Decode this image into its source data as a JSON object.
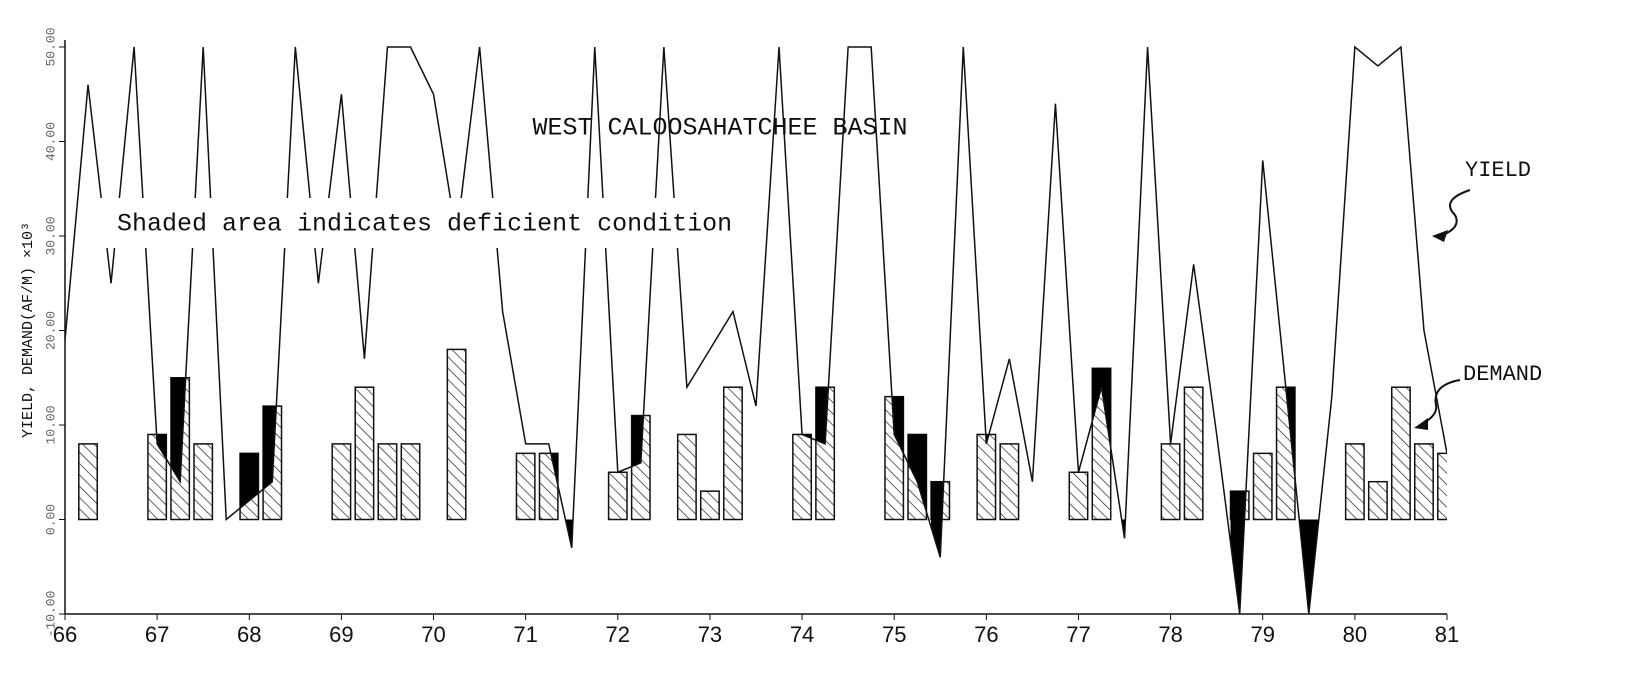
{
  "chart_data": {
    "type": "line",
    "title": "WEST CALOOSAHATCHEE BASIN",
    "annotation": "Shaded area indicates deficient condition",
    "y_label": "YIELD, DEMAND(AF/M) ×10³",
    "x": [
      66,
      66.25,
      66.5,
      66.75,
      67,
      67.25,
      67.5,
      67.75,
      68,
      68.25,
      68.5,
      68.75,
      69,
      69.25,
      69.5,
      69.75,
      70,
      70.25,
      70.5,
      70.75,
      71,
      71.25,
      71.5,
      71.75,
      72,
      72.25,
      72.5,
      72.75,
      73,
      73.25,
      73.5,
      73.75,
      74,
      74.25,
      74.5,
      74.75,
      75,
      75.25,
      75.5,
      75.75,
      76,
      76.25,
      76.5,
      76.75,
      77,
      77.25,
      77.5,
      77.75,
      78,
      78.25,
      78.5,
      78.75,
      79,
      79.25,
      79.5,
      79.75,
      80,
      80.25,
      80.5,
      80.75,
      81
    ],
    "series": [
      {
        "name": "YIELD",
        "color": "#111111",
        "style": "line",
        "values": [
          19,
          46,
          25,
          50,
          8,
          4,
          50,
          0,
          2,
          4,
          50,
          25,
          45,
          17,
          50,
          50,
          45,
          30,
          50,
          22,
          8,
          8,
          -3,
          50,
          5,
          6,
          50,
          14,
          18,
          22,
          12,
          50,
          9,
          8,
          50,
          50,
          9,
          4,
          -4,
          50,
          8,
          17,
          4,
          44,
          5,
          14,
          -2,
          50,
          8,
          27,
          9,
          -10,
          38,
          14,
          -10,
          13,
          50,
          48,
          50,
          20,
          7
        ]
      },
      {
        "name": "DEMAND",
        "color": "#111111",
        "style": "hatched-bar",
        "values": [
          0,
          8,
          0,
          0,
          9,
          15,
          8,
          0,
          7,
          12,
          0,
          0,
          8,
          14,
          8,
          8,
          0,
          18,
          0,
          0,
          7,
          7,
          0,
          0,
          5,
          11,
          0,
          9,
          3,
          14,
          0,
          0,
          9,
          14,
          0,
          0,
          13,
          9,
          4,
          0,
          9,
          8,
          0,
          0,
          5,
          16,
          0,
          0,
          8,
          14,
          0,
          3,
          7,
          14,
          0,
          0,
          8,
          4,
          14,
          8,
          7
        ]
      }
    ],
    "xlim": [
      66,
      81
    ],
    "xticks": [
      66,
      67,
      68,
      69,
      70,
      71,
      72,
      73,
      74,
      75,
      76,
      77,
      78,
      79,
      80,
      81
    ],
    "ylim": [
      -10,
      50
    ],
    "yticks": [
      {
        "value": -10,
        "label": "-10.00"
      },
      {
        "value": 0,
        "label": "0.00"
      },
      {
        "value": 10,
        "label": "10.00"
      },
      {
        "value": 20,
        "label": "20.00"
      },
      {
        "value": 30,
        "label": "30.00"
      },
      {
        "value": 40,
        "label": "40.00"
      },
      {
        "value": 50,
        "label": "50.00"
      }
    ],
    "grid": false
  }
}
